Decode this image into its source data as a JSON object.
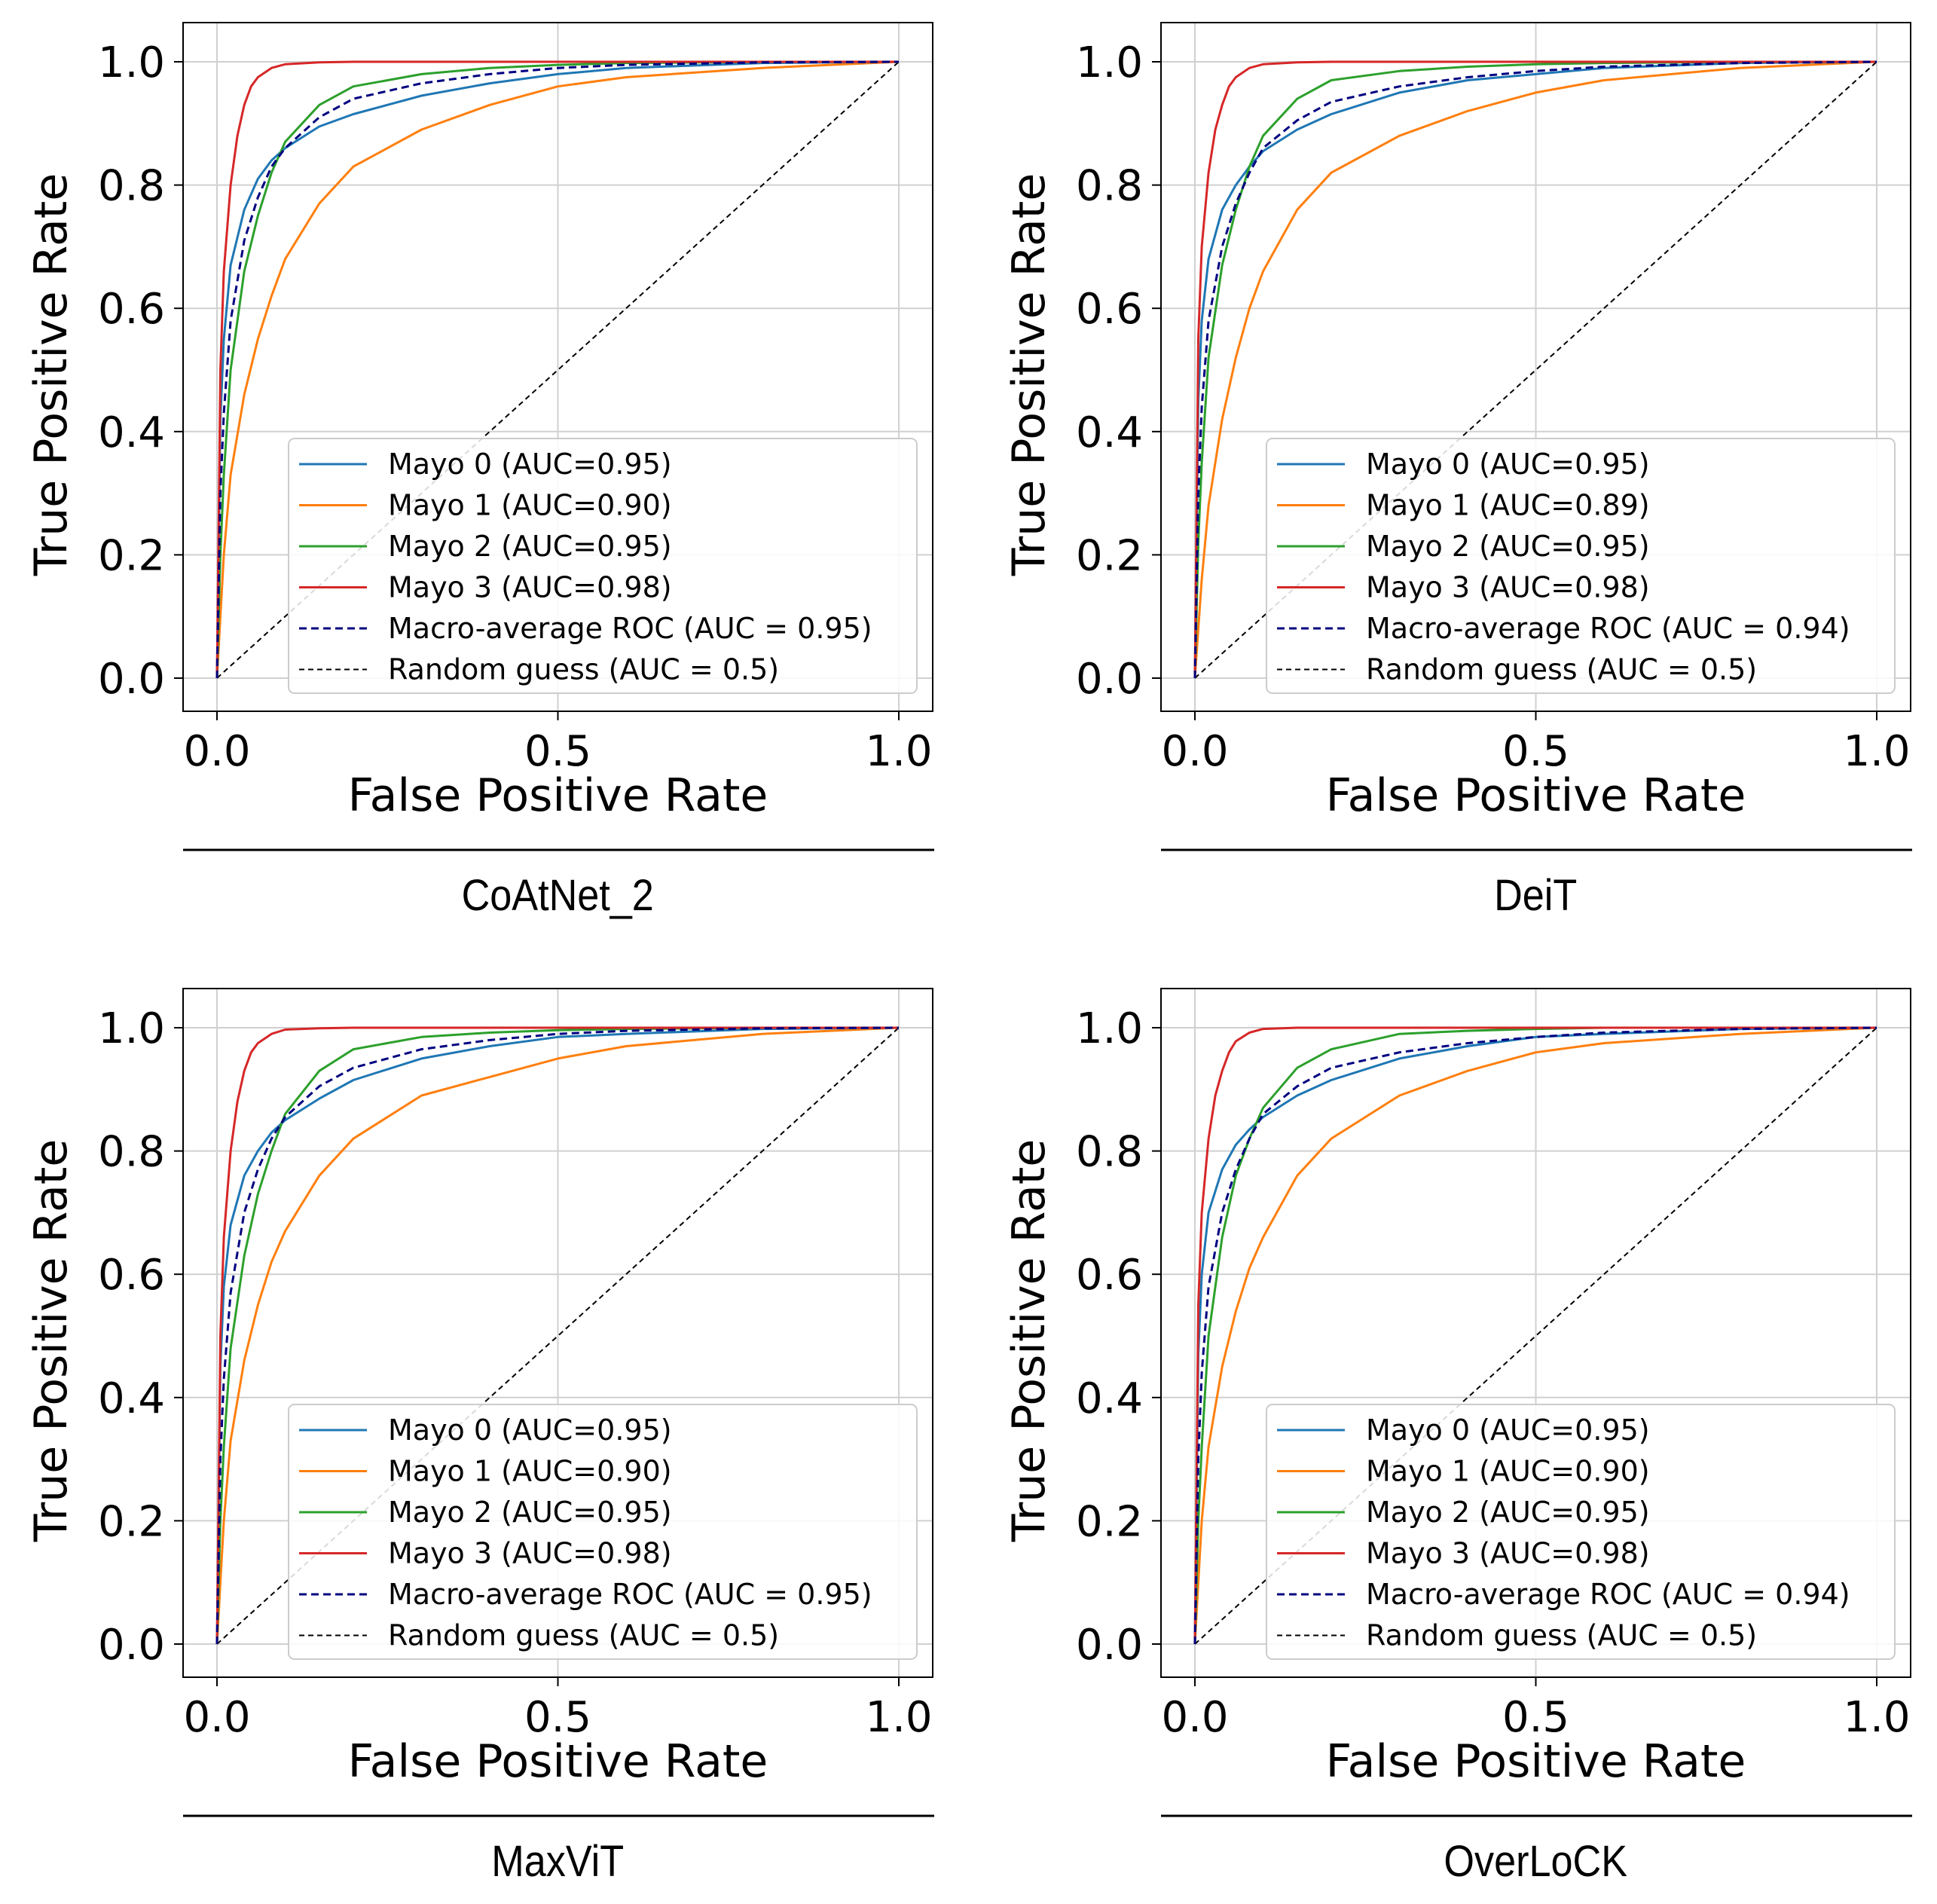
{
  "colors": {
    "mayo0": "#1f77b4",
    "mayo1": "#ff7f0e",
    "mayo2": "#2ca02c",
    "mayo3": "#d62728",
    "macro": "#000080",
    "random": "#000000",
    "grid": "#d0d0d0"
  },
  "chart_data": [
    {
      "type": "line",
      "caption": "CoAtNet_2",
      "xlabel": "False Positive Rate",
      "ylabel": "True Positive Rate",
      "xlim": [
        0,
        1
      ],
      "ylim": [
        0,
        1
      ],
      "xticks": [
        "0.0",
        "0.5",
        "1.0"
      ],
      "yticks": [
        "0.0",
        "0.2",
        "0.4",
        "0.6",
        "0.8",
        "1.0"
      ],
      "grid": true,
      "legend_position": "lower-right",
      "series": [
        {
          "name": "Mayo 0 (AUC=0.95)",
          "color": "mayo0",
          "dash": false,
          "x": [
            0,
            0.005,
            0.01,
            0.02,
            0.04,
            0.06,
            0.08,
            0.1,
            0.15,
            0.2,
            0.3,
            0.4,
            0.5,
            0.6,
            0.8,
            1.0
          ],
          "y": [
            0,
            0.42,
            0.55,
            0.67,
            0.76,
            0.81,
            0.84,
            0.86,
            0.895,
            0.915,
            0.945,
            0.965,
            0.98,
            0.99,
            0.998,
            1.0
          ]
        },
        {
          "name": "Mayo 1 (AUC=0.90)",
          "color": "mayo1",
          "dash": false,
          "x": [
            0,
            0.005,
            0.01,
            0.02,
            0.04,
            0.06,
            0.08,
            0.1,
            0.15,
            0.2,
            0.3,
            0.4,
            0.5,
            0.6,
            0.8,
            1.0
          ],
          "y": [
            0,
            0.1,
            0.2,
            0.33,
            0.46,
            0.55,
            0.62,
            0.68,
            0.77,
            0.83,
            0.89,
            0.93,
            0.96,
            0.975,
            0.99,
            1.0
          ]
        },
        {
          "name": "Mayo 2 (AUC=0.95)",
          "color": "mayo2",
          "dash": false,
          "x": [
            0,
            0.005,
            0.01,
            0.02,
            0.04,
            0.06,
            0.08,
            0.1,
            0.15,
            0.2,
            0.3,
            0.4,
            0.5,
            0.6,
            0.8,
            1.0
          ],
          "y": [
            0,
            0.2,
            0.33,
            0.5,
            0.66,
            0.75,
            0.82,
            0.87,
            0.93,
            0.96,
            0.98,
            0.99,
            0.995,
            0.998,
            1.0,
            1.0
          ]
        },
        {
          "name": "Mayo 3 (AUC=0.98)",
          "color": "mayo3",
          "dash": false,
          "x": [
            0,
            0.005,
            0.01,
            0.02,
            0.03,
            0.04,
            0.05,
            0.06,
            0.08,
            0.1,
            0.15,
            0.2,
            0.3,
            0.5,
            1.0
          ],
          "y": [
            0,
            0.5,
            0.66,
            0.8,
            0.88,
            0.93,
            0.96,
            0.975,
            0.99,
            0.996,
            0.999,
            1.0,
            1.0,
            1.0,
            1.0
          ]
        },
        {
          "name": "Macro-average ROC (AUC = 0.95)",
          "color": "macro",
          "dash": true,
          "x": [
            0,
            0.005,
            0.01,
            0.02,
            0.04,
            0.06,
            0.08,
            0.1,
            0.15,
            0.2,
            0.3,
            0.4,
            0.5,
            0.6,
            0.8,
            1.0
          ],
          "y": [
            0,
            0.3,
            0.43,
            0.58,
            0.71,
            0.78,
            0.83,
            0.86,
            0.91,
            0.94,
            0.965,
            0.98,
            0.99,
            0.995,
            0.999,
            1.0
          ]
        },
        {
          "name": "Random guess (AUC = 0.5)",
          "color": "random",
          "dash": true,
          "x": [
            0,
            1
          ],
          "y": [
            0,
            1
          ]
        }
      ]
    },
    {
      "type": "line",
      "caption": "DeiT",
      "xlabel": "False Positive Rate",
      "ylabel": "True Positive Rate",
      "xlim": [
        0,
        1
      ],
      "ylim": [
        0,
        1
      ],
      "xticks": [
        "0.0",
        "0.5",
        "1.0"
      ],
      "yticks": [
        "0.0",
        "0.2",
        "0.4",
        "0.6",
        "0.8",
        "1.0"
      ],
      "grid": true,
      "legend_position": "lower-right",
      "series": [
        {
          "name": "Mayo 0 (AUC=0.95)",
          "color": "mayo0",
          "dash": false,
          "x": [
            0,
            0.005,
            0.01,
            0.02,
            0.04,
            0.06,
            0.08,
            0.1,
            0.15,
            0.2,
            0.3,
            0.4,
            0.5,
            0.6,
            0.8,
            1.0
          ],
          "y": [
            0,
            0.45,
            0.58,
            0.68,
            0.76,
            0.8,
            0.83,
            0.855,
            0.89,
            0.915,
            0.95,
            0.97,
            0.98,
            0.99,
            0.998,
            1.0
          ]
        },
        {
          "name": "Mayo 1 (AUC=0.89)",
          "color": "mayo1",
          "dash": false,
          "x": [
            0,
            0.005,
            0.01,
            0.02,
            0.04,
            0.06,
            0.08,
            0.1,
            0.15,
            0.2,
            0.3,
            0.4,
            0.5,
            0.6,
            0.8,
            1.0
          ],
          "y": [
            0,
            0.08,
            0.16,
            0.28,
            0.42,
            0.52,
            0.6,
            0.66,
            0.76,
            0.82,
            0.88,
            0.92,
            0.95,
            0.97,
            0.99,
            1.0
          ]
        },
        {
          "name": "Mayo 2 (AUC=0.95)",
          "color": "mayo2",
          "dash": false,
          "x": [
            0,
            0.005,
            0.01,
            0.02,
            0.04,
            0.06,
            0.08,
            0.1,
            0.15,
            0.2,
            0.3,
            0.4,
            0.5,
            0.6,
            0.8,
            1.0
          ],
          "y": [
            0,
            0.22,
            0.35,
            0.52,
            0.67,
            0.76,
            0.83,
            0.88,
            0.94,
            0.97,
            0.985,
            0.992,
            0.996,
            0.998,
            1.0,
            1.0
          ]
        },
        {
          "name": "Mayo 3 (AUC=0.98)",
          "color": "mayo3",
          "dash": false,
          "x": [
            0,
            0.005,
            0.01,
            0.02,
            0.03,
            0.04,
            0.05,
            0.06,
            0.08,
            0.1,
            0.15,
            0.2,
            0.3,
            0.5,
            1.0
          ],
          "y": [
            0,
            0.55,
            0.7,
            0.82,
            0.89,
            0.93,
            0.96,
            0.975,
            0.99,
            0.996,
            0.999,
            1.0,
            1.0,
            1.0,
            1.0
          ]
        },
        {
          "name": "Macro-average ROC (AUC = 0.94)",
          "color": "macro",
          "dash": true,
          "x": [
            0,
            0.005,
            0.01,
            0.02,
            0.04,
            0.06,
            0.08,
            0.1,
            0.15,
            0.2,
            0.3,
            0.4,
            0.5,
            0.6,
            0.8,
            1.0
          ],
          "y": [
            0,
            0.3,
            0.44,
            0.58,
            0.7,
            0.77,
            0.82,
            0.86,
            0.905,
            0.935,
            0.96,
            0.975,
            0.985,
            0.992,
            0.998,
            1.0
          ]
        },
        {
          "name": "Random guess (AUC = 0.5)",
          "color": "random",
          "dash": true,
          "x": [
            0,
            1
          ],
          "y": [
            0,
            1
          ]
        }
      ]
    },
    {
      "type": "line",
      "caption": "MaxViT",
      "xlabel": "False Positive Rate",
      "ylabel": "True Positive Rate",
      "xlim": [
        0,
        1
      ],
      "ylim": [
        0,
        1
      ],
      "xticks": [
        "0.0",
        "0.5",
        "1.0"
      ],
      "yticks": [
        "0.0",
        "0.2",
        "0.4",
        "0.6",
        "0.8",
        "1.0"
      ],
      "grid": true,
      "legend_position": "lower-right",
      "series": [
        {
          "name": "Mayo 0 (AUC=0.95)",
          "color": "mayo0",
          "dash": false,
          "x": [
            0,
            0.005,
            0.01,
            0.02,
            0.04,
            0.06,
            0.08,
            0.1,
            0.15,
            0.2,
            0.3,
            0.4,
            0.5,
            0.6,
            0.8,
            1.0
          ],
          "y": [
            0,
            0.45,
            0.58,
            0.68,
            0.76,
            0.8,
            0.83,
            0.85,
            0.885,
            0.915,
            0.95,
            0.97,
            0.985,
            0.99,
            0.998,
            1.0
          ]
        },
        {
          "name": "Mayo 1 (AUC=0.90)",
          "color": "mayo1",
          "dash": false,
          "x": [
            0,
            0.005,
            0.01,
            0.02,
            0.04,
            0.06,
            0.08,
            0.1,
            0.15,
            0.2,
            0.3,
            0.4,
            0.5,
            0.6,
            0.8,
            1.0
          ],
          "y": [
            0,
            0.1,
            0.2,
            0.33,
            0.46,
            0.55,
            0.62,
            0.67,
            0.76,
            0.82,
            0.89,
            0.92,
            0.95,
            0.97,
            0.99,
            1.0
          ]
        },
        {
          "name": "Mayo 2 (AUC=0.95)",
          "color": "mayo2",
          "dash": false,
          "x": [
            0,
            0.005,
            0.01,
            0.02,
            0.04,
            0.06,
            0.08,
            0.1,
            0.15,
            0.2,
            0.3,
            0.4,
            0.5,
            0.6,
            0.8,
            1.0
          ],
          "y": [
            0,
            0.2,
            0.32,
            0.48,
            0.63,
            0.73,
            0.8,
            0.86,
            0.93,
            0.965,
            0.985,
            0.992,
            0.996,
            0.998,
            1.0,
            1.0
          ]
        },
        {
          "name": "Mayo 3 (AUC=0.98)",
          "color": "mayo3",
          "dash": false,
          "x": [
            0,
            0.005,
            0.01,
            0.02,
            0.03,
            0.04,
            0.05,
            0.06,
            0.08,
            0.1,
            0.15,
            0.2,
            0.3,
            0.5,
            1.0
          ],
          "y": [
            0,
            0.5,
            0.66,
            0.8,
            0.88,
            0.93,
            0.96,
            0.975,
            0.99,
            0.997,
            0.999,
            1.0,
            1.0,
            1.0,
            1.0
          ]
        },
        {
          "name": "Macro-average ROC (AUC = 0.95)",
          "color": "macro",
          "dash": true,
          "x": [
            0,
            0.005,
            0.01,
            0.02,
            0.04,
            0.06,
            0.08,
            0.1,
            0.15,
            0.2,
            0.3,
            0.4,
            0.5,
            0.6,
            0.8,
            1.0
          ],
          "y": [
            0,
            0.3,
            0.43,
            0.57,
            0.7,
            0.77,
            0.82,
            0.855,
            0.905,
            0.935,
            0.965,
            0.98,
            0.99,
            0.995,
            0.999,
            1.0
          ]
        },
        {
          "name": "Random guess (AUC = 0.5)",
          "color": "random",
          "dash": true,
          "x": [
            0,
            1
          ],
          "y": [
            0,
            1
          ]
        }
      ]
    },
    {
      "type": "line",
      "caption": "OverLoCK",
      "xlabel": "False Positive Rate",
      "ylabel": "True Positive Rate",
      "xlim": [
        0,
        1
      ],
      "ylim": [
        0,
        1
      ],
      "xticks": [
        "0.0",
        "0.5",
        "1.0"
      ],
      "yticks": [
        "0.0",
        "0.2",
        "0.4",
        "0.6",
        "0.8",
        "1.0"
      ],
      "grid": true,
      "legend_position": "lower-right",
      "series": [
        {
          "name": "Mayo 0 (AUC=0.95)",
          "color": "mayo0",
          "dash": false,
          "x": [
            0,
            0.005,
            0.01,
            0.02,
            0.04,
            0.06,
            0.08,
            0.1,
            0.15,
            0.2,
            0.3,
            0.4,
            0.5,
            0.6,
            0.8,
            1.0
          ],
          "y": [
            0,
            0.47,
            0.6,
            0.7,
            0.77,
            0.81,
            0.835,
            0.855,
            0.89,
            0.915,
            0.95,
            0.97,
            0.985,
            0.99,
            0.998,
            1.0
          ]
        },
        {
          "name": "Mayo 1 (AUC=0.90)",
          "color": "mayo1",
          "dash": false,
          "x": [
            0,
            0.005,
            0.01,
            0.02,
            0.04,
            0.06,
            0.08,
            0.1,
            0.15,
            0.2,
            0.3,
            0.4,
            0.5,
            0.6,
            0.8,
            1.0
          ],
          "y": [
            0,
            0.1,
            0.2,
            0.32,
            0.45,
            0.54,
            0.61,
            0.66,
            0.76,
            0.82,
            0.89,
            0.93,
            0.96,
            0.975,
            0.99,
            1.0
          ]
        },
        {
          "name": "Mayo 2 (AUC=0.95)",
          "color": "mayo2",
          "dash": false,
          "x": [
            0,
            0.005,
            0.01,
            0.02,
            0.04,
            0.06,
            0.08,
            0.1,
            0.15,
            0.2,
            0.3,
            0.4,
            0.5,
            0.6,
            0.8,
            1.0
          ],
          "y": [
            0,
            0.2,
            0.32,
            0.5,
            0.66,
            0.76,
            0.82,
            0.87,
            0.935,
            0.965,
            0.99,
            0.995,
            0.998,
            1.0,
            1.0,
            1.0
          ]
        },
        {
          "name": "Mayo 3 (AUC=0.98)",
          "color": "mayo3",
          "dash": false,
          "x": [
            0,
            0.005,
            0.01,
            0.02,
            0.03,
            0.04,
            0.05,
            0.06,
            0.08,
            0.1,
            0.15,
            0.2,
            0.3,
            0.5,
            1.0
          ],
          "y": [
            0,
            0.55,
            0.7,
            0.82,
            0.89,
            0.93,
            0.96,
            0.978,
            0.992,
            0.998,
            1.0,
            1.0,
            1.0,
            1.0,
            1.0
          ]
        },
        {
          "name": "Macro-average ROC (AUC = 0.94)",
          "color": "macro",
          "dash": true,
          "x": [
            0,
            0.005,
            0.01,
            0.02,
            0.04,
            0.06,
            0.08,
            0.1,
            0.15,
            0.2,
            0.3,
            0.4,
            0.5,
            0.6,
            0.8,
            1.0
          ],
          "y": [
            0,
            0.3,
            0.44,
            0.58,
            0.7,
            0.77,
            0.82,
            0.86,
            0.905,
            0.935,
            0.96,
            0.975,
            0.985,
            0.992,
            0.998,
            1.0
          ]
        },
        {
          "name": "Random guess (AUC = 0.5)",
          "color": "random",
          "dash": true,
          "x": [
            0,
            1
          ],
          "y": [
            0,
            1
          ]
        }
      ]
    }
  ]
}
